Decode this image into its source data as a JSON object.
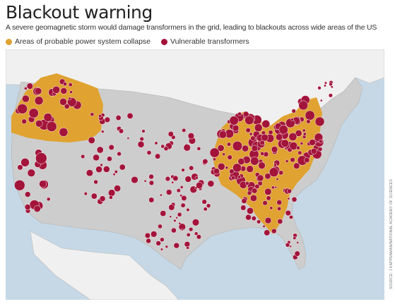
{
  "title": "Blackout warning",
  "subtitle": "A severe geomagnetic storm would damage transformers in the grid, leading to blackouts across wide areas of the US",
  "legend": [
    {
      "label": "Areas of probable power system collapse",
      "color": "#e0a230"
    },
    {
      "label": "Vulnerable transformers",
      "color": "#a3143a"
    }
  ],
  "source": "SOURCE: J KAPPENMAN/NATIONAL ACADEMY OF SCIENCES",
  "colors": {
    "water": "#c6d8e6",
    "us_land": "#cdcdcd",
    "neighbor_land": "#f0f0f0",
    "collapse_area": "#e0a230",
    "transformer": "#a3143a"
  }
}
